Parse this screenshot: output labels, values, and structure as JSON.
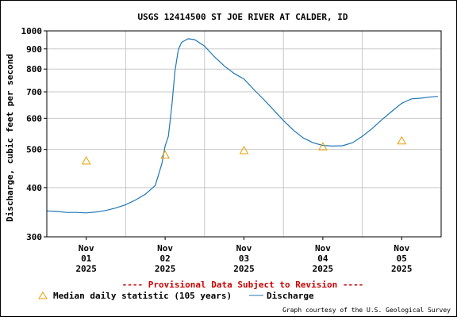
{
  "chart_data": {
    "type": "line",
    "title": "USGS 12414500 ST JOE RIVER AT CALDER, ID",
    "ylabel": "Discharge, cubic feet per second",
    "xlabel": "",
    "y_scale": "log",
    "ylim": [
      300,
      1000
    ],
    "y_ticks": [
      300,
      400,
      500,
      600,
      700,
      800,
      900,
      1000
    ],
    "y_tick_labels": [
      "300",
      "400",
      "500",
      "600",
      "700",
      "800",
      "900",
      "1000"
    ],
    "x_range_days": [
      "2025-10-31 12:00",
      "2025-11-05 12:00"
    ],
    "x_tick_dates": [
      "2025-11-01",
      "2025-11-02",
      "2025-11-03",
      "2025-11-04",
      "2025-11-05"
    ],
    "x_tick_labels": [
      [
        "Nov",
        "01",
        "2025"
      ],
      [
        "Nov",
        "02",
        "2025"
      ],
      [
        "Nov",
        "03",
        "2025"
      ],
      [
        "Nov",
        "04",
        "2025"
      ],
      [
        "Nov",
        "05",
        "2025"
      ]
    ],
    "grid": true,
    "series": [
      {
        "name": "Discharge",
        "kind": "line",
        "color": "#1f77b4",
        "points": [
          [
            "2025-10-31 12:00",
            349
          ],
          [
            "2025-10-31 15:00",
            348
          ],
          [
            "2025-10-31 18:00",
            346
          ],
          [
            "2025-10-31 21:00",
            346
          ],
          [
            "2025-11-01 00:00",
            345
          ],
          [
            "2025-11-01 03:00",
            347
          ],
          [
            "2025-11-01 06:00",
            350
          ],
          [
            "2025-11-01 09:00",
            355
          ],
          [
            "2025-11-01 12:00",
            362
          ],
          [
            "2025-11-01 15:00",
            372
          ],
          [
            "2025-11-01 18:00",
            385
          ],
          [
            "2025-11-01 21:00",
            405
          ],
          [
            "2025-11-01 23:00",
            460
          ],
          [
            "2025-11-02 00:00",
            510
          ],
          [
            "2025-11-02 01:00",
            540
          ],
          [
            "2025-11-02 02:00",
            640
          ],
          [
            "2025-11-02 03:00",
            790
          ],
          [
            "2025-11-02 04:00",
            895
          ],
          [
            "2025-11-02 05:00",
            935
          ],
          [
            "2025-11-02 07:00",
            955
          ],
          [
            "2025-11-02 09:00",
            950
          ],
          [
            "2025-11-02 12:00",
            915
          ],
          [
            "2025-11-02 15:00",
            860
          ],
          [
            "2025-11-02 18:00",
            815
          ],
          [
            "2025-11-02 21:00",
            780
          ],
          [
            "2025-11-03 00:00",
            755
          ],
          [
            "2025-11-03 03:00",
            710
          ],
          [
            "2025-11-03 06:00",
            670
          ],
          [
            "2025-11-03 09:00",
            630
          ],
          [
            "2025-11-03 12:00",
            592
          ],
          [
            "2025-11-03 15:00",
            560
          ],
          [
            "2025-11-03 18:00",
            535
          ],
          [
            "2025-11-03 21:00",
            520
          ],
          [
            "2025-11-04 00:00",
            512
          ],
          [
            "2025-11-04 03:00",
            510
          ],
          [
            "2025-11-04 06:00",
            511
          ],
          [
            "2025-11-04 09:00",
            520
          ],
          [
            "2025-11-04 12:00",
            540
          ],
          [
            "2025-11-04 15:00",
            565
          ],
          [
            "2025-11-04 18:00",
            595
          ],
          [
            "2025-11-04 21:00",
            625
          ],
          [
            "2025-11-05 00:00",
            655
          ],
          [
            "2025-11-05 03:00",
            672
          ],
          [
            "2025-11-05 06:00",
            675
          ],
          [
            "2025-11-05 09:00",
            680
          ],
          [
            "2025-11-05 11:00",
            682
          ]
        ]
      },
      {
        "name": "Median daily statistic (105 years)",
        "kind": "marker",
        "marker": "triangle",
        "color": "#e8a000",
        "points": [
          [
            "2025-11-01 00:00",
            468
          ],
          [
            "2025-11-02 00:00",
            484
          ],
          [
            "2025-11-03 00:00",
            497
          ],
          [
            "2025-11-04 00:00",
            508
          ],
          [
            "2025-11-05 00:00",
            526
          ]
        ]
      }
    ]
  },
  "provisional_note": "---- Provisional Data Subject to Revision ----",
  "legend": {
    "median_label": "Median daily statistic (105 years)",
    "discharge_label": "Discharge"
  },
  "credit": "Graph courtesy of the U.S. Geological Survey"
}
